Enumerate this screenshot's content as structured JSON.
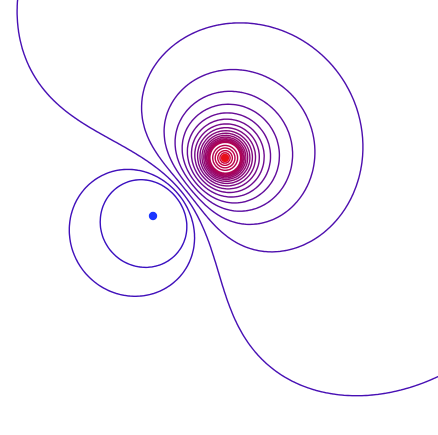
{
  "diagram": {
    "type": "contour-plot",
    "background": "#ffffff",
    "line_colors": {
      "near_blue": "#3a10c0",
      "near_red": "#c8003c"
    },
    "points": [
      {
        "id": "blue-point",
        "color": "#1a35ff"
      },
      {
        "id": "red-point",
        "color": "#e8101a"
      }
    ]
  }
}
